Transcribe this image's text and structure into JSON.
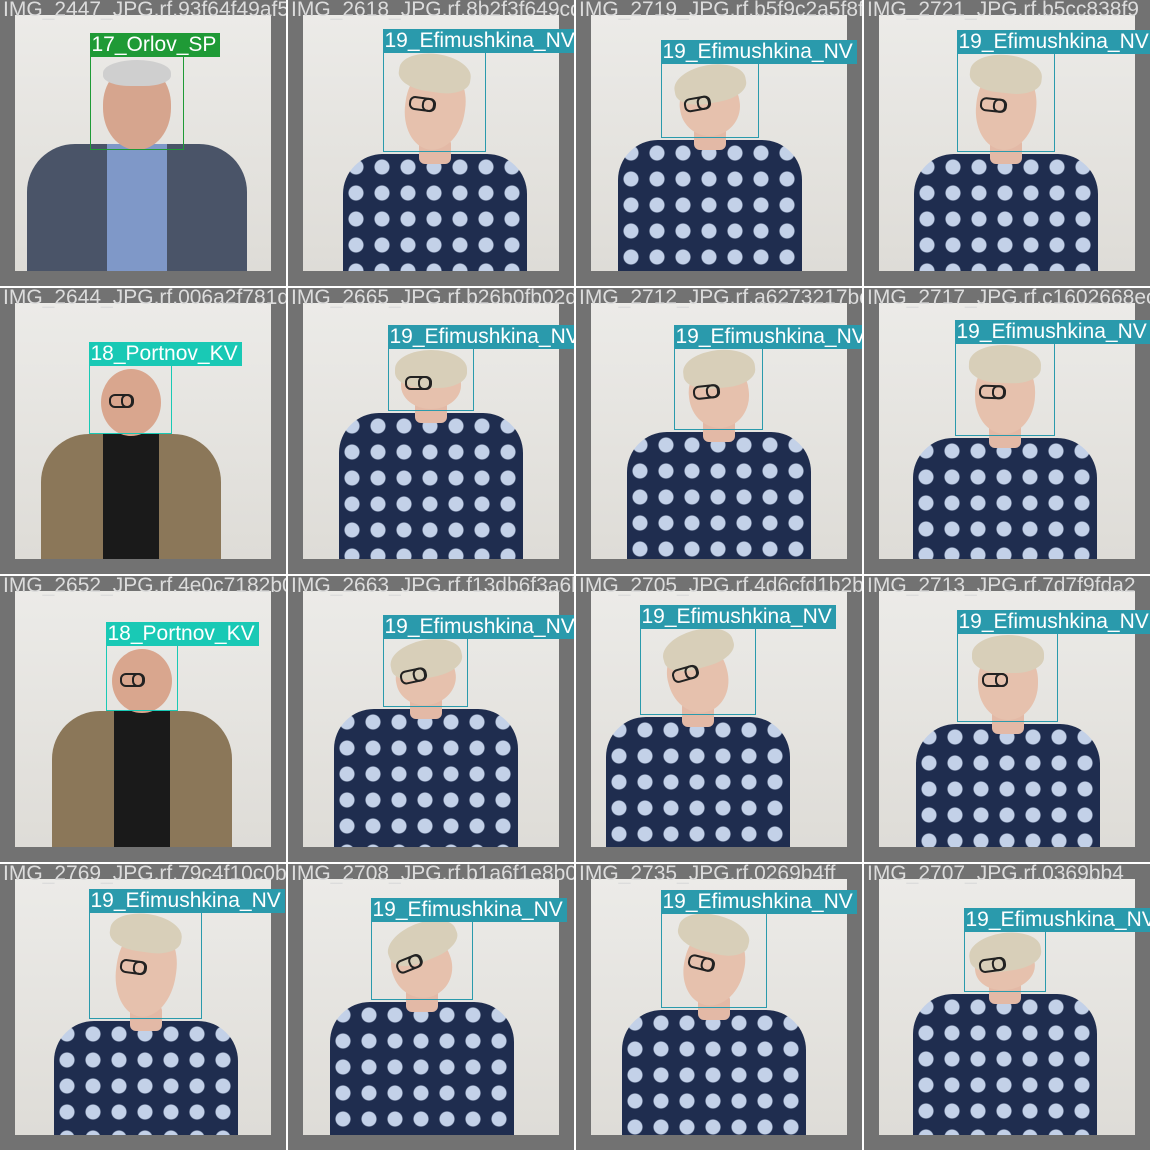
{
  "colors": {
    "orlov": "#1f9a36",
    "portnov": "#19c9b5",
    "efimushkina": "#2a9aac"
  },
  "tiles": [
    {
      "filename": "IMG_2447_JPG.rf.93f64f49af5df28c0d75b7b5",
      "person": "orlov",
      "label": "17_Orlov_SP"
    },
    {
      "filename": "IMG_2618_JPG.rf.8b2f3f649cd740b0c47fe23a",
      "person": "efimushkina",
      "label": "19_Efimushkina_NV"
    },
    {
      "filename": "IMG_2719_JPG.rf.b5f9c2a5f8fd4adfaf9e3d7a",
      "person": "efimushkina",
      "label": "19_Efimushkina_NV"
    },
    {
      "filename": "IMG_2721_JPG.rf.b5cc838f9",
      "person": "efimushkina",
      "label": "19_Efimushkina_NV"
    },
    {
      "filename": "IMG_2644_JPG.rf.006a2f781d1d07b5d3b733b",
      "person": "portnov",
      "label": "18_Portnov_KV"
    },
    {
      "filename": "IMG_2665_JPG.rf.b26b0fb02d1f26b0fa",
      "person": "efimushkina",
      "label": "19_Efimushkina_NV"
    },
    {
      "filename": "IMG_2712_JPG.rf.a6273217bd1e3",
      "person": "efimushkina",
      "label": "19_Efimushkina_NV"
    },
    {
      "filename": "IMG_2717_JPG.rf.c1602668ec",
      "person": "efimushkina",
      "label": "19_Efimushkina_NV"
    },
    {
      "filename": "IMG_2652_JPG.rf.4e0c7182b0b7970a4f36df",
      "person": "portnov",
      "label": "18_Portnov_KV"
    },
    {
      "filename": "IMG_2663_JPG.rf.f13db6f3a6b0a7b5bd4d6",
      "person": "efimushkina",
      "label": "19_Efimushkina_NV"
    },
    {
      "filename": "IMG_2705_JPG.rf.4d6cfd1b2b1f6e3",
      "person": "efimushkina",
      "label": "19_Efimushkina_NV"
    },
    {
      "filename": "IMG_2713_JPG.rf.7d7f9fda2",
      "person": "efimushkina",
      "label": "19_Efimushkina_NV"
    },
    {
      "filename": "IMG_2769_JPG.rf.79c4f10c0b0eb9d9e3a16f70a7ec3",
      "person": "efimushkina",
      "label": "19_Efimushkina_NV"
    },
    {
      "filename": "IMG_2708_JPG.rf.b1a6f1e8b02612",
      "person": "efimushkina",
      "label": "19_Efimushkina_NV"
    },
    {
      "filename": "IMG_2735_JPG.rf.0269b4ff",
      "person": "efimushkina",
      "label": "19_Efimushkina_NV"
    },
    {
      "filename": "IMG_2707_JPG.rf.0369bb4",
      "person": "efimushkina",
      "label": "19_Efimushkina_NV"
    }
  ]
}
